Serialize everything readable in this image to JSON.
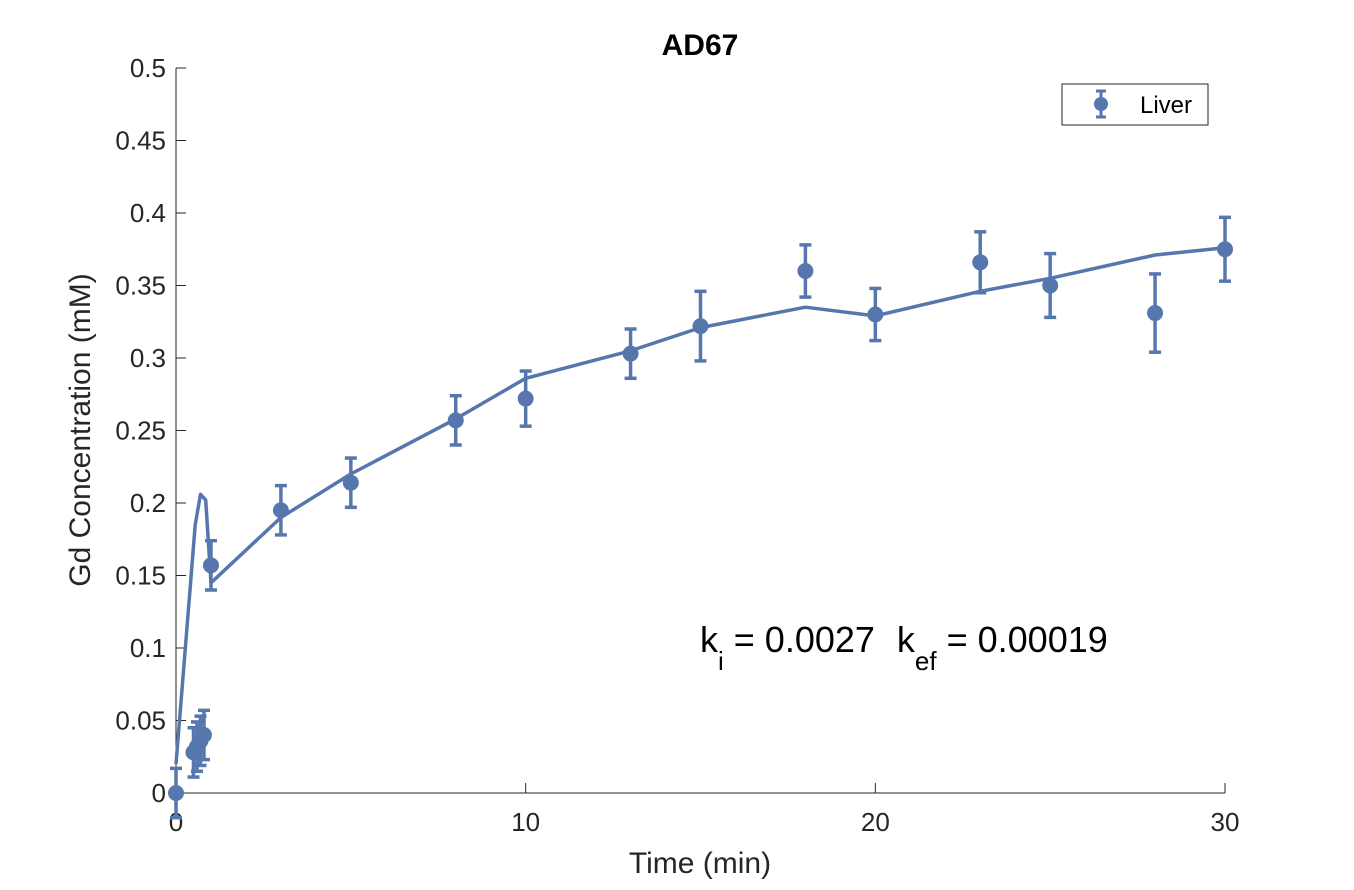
{
  "chart_data": {
    "type": "scatter",
    "title": "AD67",
    "xlabel": "Time (min)",
    "ylabel": "Gd Concentration (mM)",
    "xlim": [
      0,
      30
    ],
    "ylim": [
      0,
      0.5
    ],
    "x_ticks": [
      "0",
      "10",
      "20",
      "30"
    ],
    "y_ticks": [
      "0",
      "0.05",
      "0.1",
      "0.15",
      "0.2",
      "0.25",
      "0.3",
      "0.35",
      "0.4",
      "0.45",
      "0.5"
    ],
    "x_tick_values": [
      0,
      10,
      20,
      30
    ],
    "y_tick_values": [
      0,
      0.05,
      0.1,
      0.15,
      0.2,
      0.25,
      0.3,
      0.35,
      0.4,
      0.45,
      0.5
    ],
    "grid": false,
    "legend_position": "top-right",
    "color": "#5677AD",
    "series": [
      {
        "name": "Liver",
        "kind": "errorbar",
        "points": [
          {
            "x": 0,
            "y": 0.0,
            "err": 0.017
          },
          {
            "x": 0.5,
            "y": 0.028,
            "err": 0.017
          },
          {
            "x": 0.6,
            "y": 0.032,
            "err": 0.017
          },
          {
            "x": 0.7,
            "y": 0.036,
            "err": 0.017
          },
          {
            "x": 0.8,
            "y": 0.04,
            "err": 0.017
          },
          {
            "x": 1,
            "y": 0.157,
            "err": 0.017
          },
          {
            "x": 3,
            "y": 0.195,
            "err": 0.017
          },
          {
            "x": 5,
            "y": 0.214,
            "err": 0.017
          },
          {
            "x": 8,
            "y": 0.257,
            "err": 0.017
          },
          {
            "x": 10,
            "y": 0.272,
            "err": 0.019
          },
          {
            "x": 13,
            "y": 0.303,
            "err": 0.017
          },
          {
            "x": 15,
            "y": 0.322,
            "err": 0.024
          },
          {
            "x": 18,
            "y": 0.36,
            "err": 0.018
          },
          {
            "x": 20,
            "y": 0.33,
            "err": 0.018
          },
          {
            "x": 23,
            "y": 0.366,
            "err": 0.021
          },
          {
            "x": 25,
            "y": 0.35,
            "err": 0.022
          },
          {
            "x": 28,
            "y": 0.331,
            "err": 0.027
          },
          {
            "x": 30,
            "y": 0.375,
            "err": 0.022
          }
        ]
      },
      {
        "kind": "line",
        "x": [
          0,
          0.2,
          0.4,
          0.55,
          0.7,
          0.85,
          1.0,
          3,
          5,
          8,
          10,
          13,
          15,
          18,
          20,
          23,
          25,
          28,
          30
        ],
        "y": [
          0.02,
          0.08,
          0.14,
          0.185,
          0.206,
          0.202,
          0.145,
          0.19,
          0.22,
          0.258,
          0.286,
          0.305,
          0.321,
          0.335,
          0.329,
          0.346,
          0.355,
          0.371,
          0.376
        ]
      }
    ],
    "annotation": {
      "k_letter": "k",
      "ki_sub": "i",
      "ki_value": " = 0.0027",
      "kef_sub": "ef",
      "kef_value": " = 0.00019"
    }
  }
}
